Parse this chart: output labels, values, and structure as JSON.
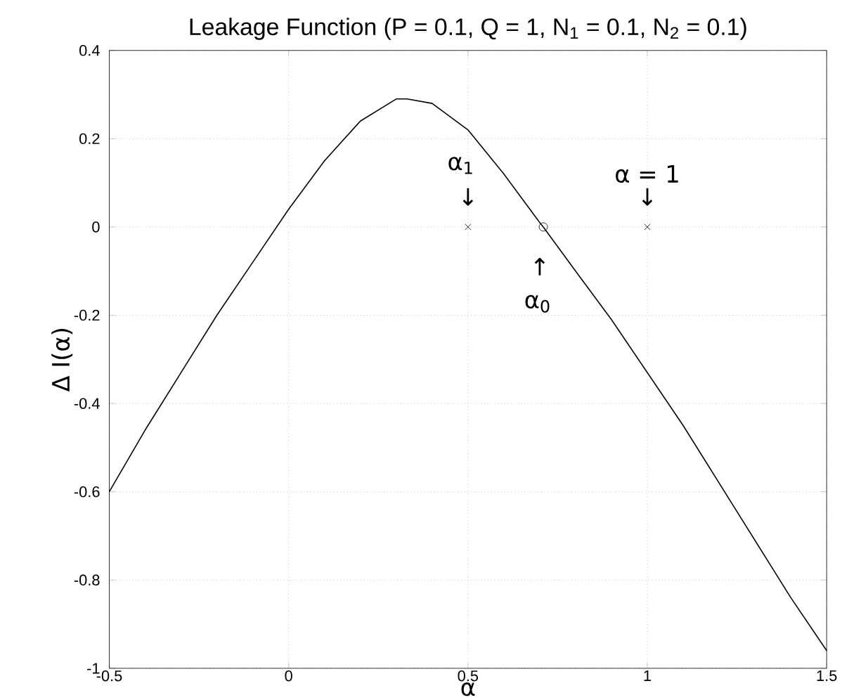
{
  "chart_data": {
    "type": "line",
    "title": "Leakage Function (P = 0.1, Q = 1, N$_{1}$ = 0.1, N$_{2}$ = 0.1)",
    "xlabel": "α",
    "ylabel": "Δ I(α)",
    "xlim": [
      -0.5,
      1.5
    ],
    "ylim": [
      -1,
      0.4
    ],
    "xticks": [
      -0.5,
      0,
      0.5,
      1,
      1.5
    ],
    "yticks": [
      -1,
      -0.8,
      -0.6,
      -0.4,
      -0.2,
      0,
      0.2,
      0.4
    ],
    "grid": true,
    "series": [
      {
        "color": "#000000",
        "x": [
          -0.5,
          -0.4,
          -0.3,
          -0.2,
          -0.1,
          0,
          0.1,
          0.2,
          0.3,
          0.33,
          0.4,
          0.5,
          0.6,
          0.7,
          0.71,
          0.8,
          0.9,
          1.0,
          1.1,
          1.2,
          1.3,
          1.4,
          1.5
        ],
        "values": [
          -0.6,
          -0.46,
          -0.33,
          -0.2,
          -0.08,
          0.04,
          0.15,
          0.24,
          0.29,
          0.29,
          0.28,
          0.22,
          0.12,
          0.01,
          0,
          -0.1,
          -0.21,
          -0.33,
          -0.45,
          -0.58,
          -0.71,
          -0.84,
          -0.96
        ]
      },
      {
        "type": "scatter",
        "marker": "cross",
        "color": "#000000",
        "x": [
          0.5,
          1
        ],
        "values": [
          0,
          0
        ]
      },
      {
        "type": "scatter",
        "marker": "circle",
        "color": "#000000",
        "x": [
          0.71
        ],
        "values": [
          0
        ]
      }
    ],
    "annotations": [
      "α$_{1}$",
      "↓",
      "α = 1",
      "↓",
      "↑",
      "α$_{0}$"
    ]
  }
}
